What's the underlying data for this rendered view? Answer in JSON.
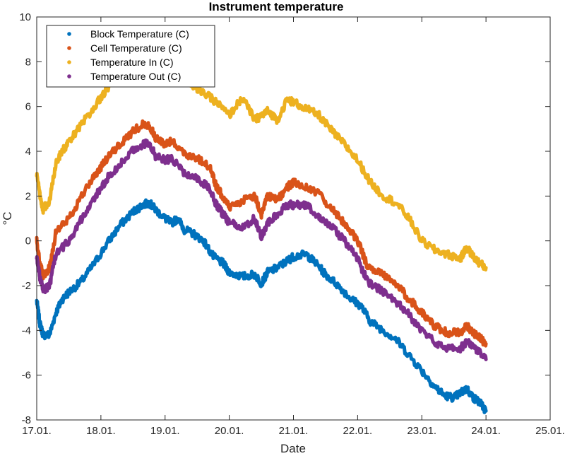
{
  "chart_data": {
    "type": "scatter",
    "title": "Instrument temperature",
    "xlabel": "Date",
    "ylabel": "°C",
    "xlim": [
      0,
      8
    ],
    "ylim": [
      -8,
      10
    ],
    "x_ticks": [
      {
        "value": 0,
        "label": "17.01."
      },
      {
        "value": 1,
        "label": "18.01."
      },
      {
        "value": 2,
        "label": "19.01."
      },
      {
        "value": 3,
        "label": "20.01."
      },
      {
        "value": 4,
        "label": "21.01."
      },
      {
        "value": 5,
        "label": "22.01."
      },
      {
        "value": 6,
        "label": "23.01."
      },
      {
        "value": 7,
        "label": "24.01."
      },
      {
        "value": 8,
        "label": "25.01."
      }
    ],
    "y_ticks": [
      {
        "value": -8,
        "label": "-8"
      },
      {
        "value": -6,
        "label": "-6"
      },
      {
        "value": -4,
        "label": "-4"
      },
      {
        "value": -2,
        "label": "-2"
      },
      {
        "value": 0,
        "label": "0"
      },
      {
        "value": 2,
        "label": "2"
      },
      {
        "value": 4,
        "label": "4"
      },
      {
        "value": 6,
        "label": "6"
      },
      {
        "value": 8,
        "label": "8"
      },
      {
        "value": 10,
        "label": "10"
      }
    ],
    "grid": false,
    "legend_position": "top-left",
    "x_units": "days since 17.01.",
    "series": [
      {
        "name": "Block Temperature (C)",
        "color": "#0072BD",
        "x": [
          0.0,
          0.05,
          0.1,
          0.2,
          0.3,
          0.4,
          0.5,
          0.7,
          0.9,
          1.1,
          1.3,
          1.5,
          1.65,
          1.75,
          1.85,
          2.0,
          2.1,
          2.2,
          2.3,
          2.45,
          2.6,
          2.75,
          2.9,
          3.0,
          3.2,
          3.4,
          3.5,
          3.6,
          3.75,
          3.9,
          4.0,
          4.2,
          4.35,
          4.5,
          4.7,
          4.9,
          5.05,
          5.2,
          5.4,
          5.6,
          5.8,
          6.0,
          6.2,
          6.35,
          6.5,
          6.6,
          6.7,
          6.8,
          6.9,
          7.0
        ],
        "y": [
          -2.7,
          -3.7,
          -4.2,
          -4.2,
          -3.2,
          -2.6,
          -2.3,
          -1.8,
          -1.0,
          -0.1,
          0.7,
          1.3,
          1.6,
          1.7,
          1.4,
          1.0,
          0.8,
          1.0,
          0.5,
          0.3,
          0.0,
          -0.7,
          -1.0,
          -1.4,
          -1.6,
          -1.5,
          -1.9,
          -1.4,
          -1.2,
          -0.9,
          -0.7,
          -0.6,
          -1.0,
          -1.5,
          -2.0,
          -2.6,
          -2.9,
          -3.6,
          -4.0,
          -4.4,
          -5.1,
          -5.8,
          -6.5,
          -6.9,
          -7.0,
          -6.8,
          -6.6,
          -7.0,
          -7.2,
          -7.6
        ]
      },
      {
        "name": "Cell Temperature (C)",
        "color": "#D95319",
        "x": [
          0.0,
          0.05,
          0.1,
          0.2,
          0.3,
          0.5,
          0.7,
          0.9,
          1.1,
          1.3,
          1.5,
          1.65,
          1.75,
          1.85,
          2.0,
          2.1,
          2.3,
          2.5,
          2.7,
          2.8,
          2.9,
          3.0,
          3.2,
          3.4,
          3.5,
          3.6,
          3.75,
          3.9,
          4.0,
          4.2,
          4.4,
          4.6,
          4.8,
          5.0,
          5.15,
          5.4,
          5.6,
          5.8,
          6.0,
          6.2,
          6.4,
          6.6,
          6.7,
          6.8,
          6.9,
          7.0
        ],
        "y": [
          0.0,
          -1.0,
          -1.6,
          -1.2,
          0.4,
          1.0,
          2.0,
          2.9,
          3.7,
          4.3,
          4.9,
          5.2,
          5.2,
          4.6,
          4.3,
          4.5,
          3.9,
          3.7,
          3.3,
          2.4,
          2.0,
          1.5,
          1.8,
          2.0,
          1.2,
          2.0,
          1.8,
          2.4,
          2.6,
          2.4,
          2.1,
          1.4,
          0.8,
          0.0,
          -1.1,
          -1.5,
          -1.9,
          -2.6,
          -3.2,
          -3.8,
          -4.1,
          -4.1,
          -3.8,
          -4.1,
          -4.3,
          -4.6
        ]
      },
      {
        "name": "Temperature In (C)",
        "color": "#EDB120",
        "x": [
          0.0,
          0.05,
          0.1,
          0.2,
          0.3,
          0.4,
          0.5,
          0.7,
          0.9,
          1.1,
          1.3,
          1.5,
          1.65,
          1.75,
          1.85,
          2.0,
          2.2,
          2.4,
          2.6,
          2.8,
          3.0,
          3.2,
          3.4,
          3.5,
          3.6,
          3.75,
          3.9,
          4.0,
          4.2,
          4.4,
          4.6,
          4.8,
          5.0,
          5.2,
          5.4,
          5.6,
          5.8,
          6.0,
          6.2,
          6.4,
          6.6,
          6.7,
          6.8,
          6.9,
          7.0
        ],
        "y": [
          3.0,
          2.0,
          1.4,
          1.8,
          3.5,
          4.0,
          4.4,
          5.2,
          6.0,
          6.8,
          7.6,
          8.4,
          8.9,
          9.2,
          8.4,
          7.6,
          7.4,
          7.0,
          6.6,
          6.2,
          5.6,
          6.4,
          5.4,
          5.6,
          5.8,
          5.4,
          6.3,
          6.2,
          5.9,
          5.6,
          4.9,
          4.3,
          3.6,
          2.6,
          2.0,
          1.7,
          1.0,
          0.0,
          -0.4,
          -0.6,
          -0.8,
          -0.3,
          -0.7,
          -1.0,
          -1.2
        ]
      },
      {
        "name": "Temperature Out (C)",
        "color": "#7E2F8E",
        "x": [
          0.0,
          0.05,
          0.1,
          0.2,
          0.3,
          0.5,
          0.7,
          0.9,
          1.1,
          1.3,
          1.5,
          1.65,
          1.75,
          1.85,
          2.0,
          2.1,
          2.3,
          2.5,
          2.7,
          2.8,
          2.9,
          3.0,
          3.2,
          3.4,
          3.5,
          3.6,
          3.75,
          3.9,
          4.0,
          4.2,
          4.4,
          4.6,
          4.8,
          5.0,
          5.15,
          5.4,
          5.6,
          5.8,
          6.0,
          6.2,
          6.4,
          6.6,
          6.7,
          6.8,
          6.9,
          7.0
        ],
        "y": [
          -0.8,
          -1.6,
          -2.2,
          -2.0,
          -0.6,
          0.0,
          1.0,
          1.9,
          2.8,
          3.4,
          4.1,
          4.3,
          4.4,
          3.8,
          3.6,
          3.7,
          3.0,
          2.8,
          2.3,
          1.6,
          1.2,
          0.8,
          0.6,
          1.0,
          0.2,
          0.8,
          1.2,
          1.6,
          1.6,
          1.6,
          1.1,
          0.6,
          0.0,
          -0.8,
          -1.8,
          -2.3,
          -2.7,
          -3.3,
          -4.0,
          -4.5,
          -4.8,
          -4.8,
          -4.5,
          -4.7,
          -5.0,
          -5.3
        ]
      }
    ]
  }
}
